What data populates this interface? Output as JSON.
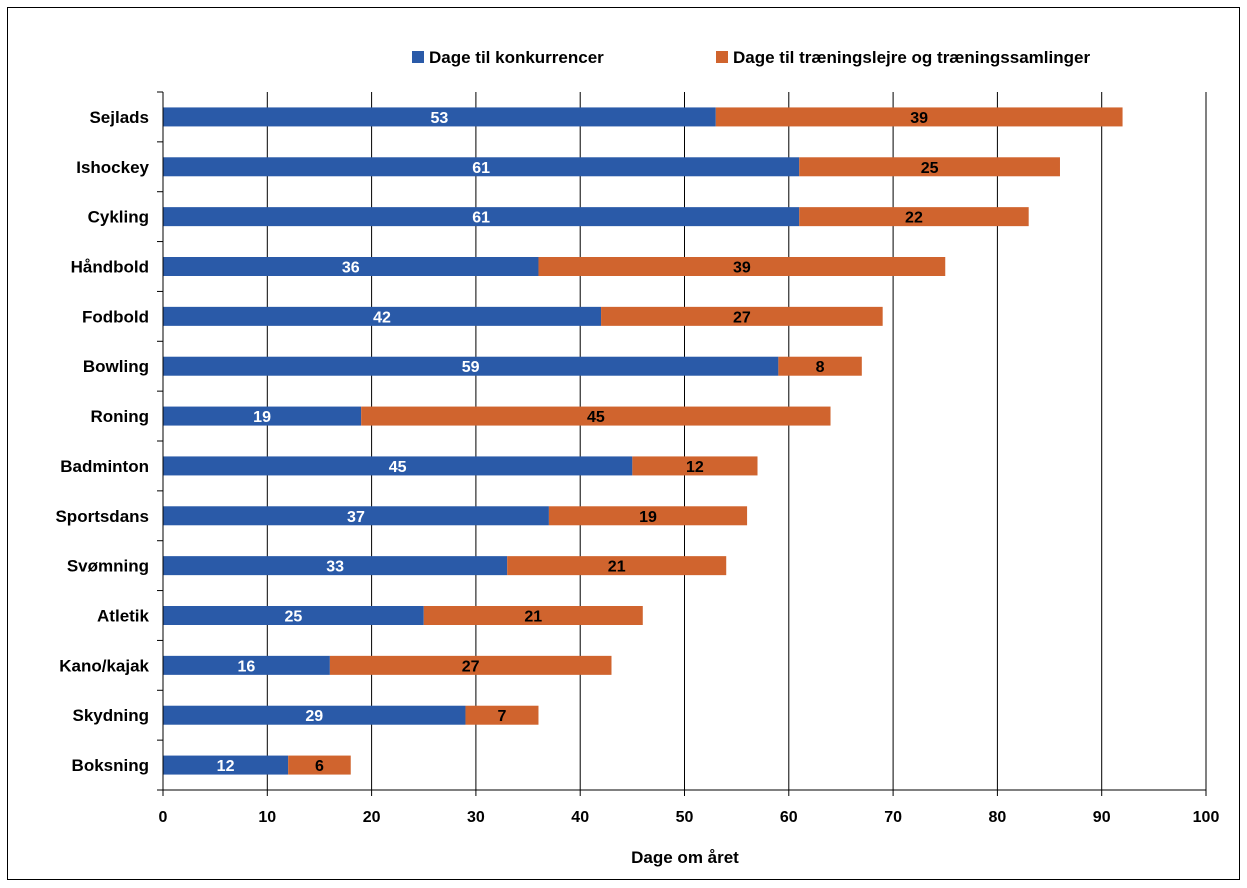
{
  "chart_data": {
    "type": "bar",
    "orientation": "horizontal",
    "stacked": true,
    "categories": [
      "Sejlads",
      "Ishockey",
      "Cykling",
      "Håndbold",
      "Fodbold",
      "Bowling",
      "Roning",
      "Badminton",
      "Sportsdans",
      "Svømning",
      "Atletik",
      "Kano/kajak",
      "Skydning",
      "Boksning"
    ],
    "series": [
      {
        "name": "Dage til konkurrencer",
        "color": "#2a5aa8",
        "label_color": "#ffffff",
        "values": [
          53,
          61,
          61,
          36,
          42,
          59,
          19,
          45,
          37,
          33,
          25,
          16,
          29,
          12
        ]
      },
      {
        "name": "Dage til træningslejre og træningssamlinger",
        "color": "#d0642e",
        "label_color": "#000000",
        "values": [
          39,
          25,
          22,
          39,
          27,
          8,
          45,
          12,
          19,
          21,
          21,
          27,
          7,
          6
        ]
      }
    ],
    "title": "",
    "xlabel": "Dage om året",
    "ylabel": "",
    "xlim": [
      0,
      100
    ],
    "xticks": [
      0,
      10,
      20,
      30,
      40,
      50,
      60,
      70,
      80,
      90,
      100
    ],
    "grid": "vertical",
    "legend_position": "top",
    "data_labels": true
  }
}
